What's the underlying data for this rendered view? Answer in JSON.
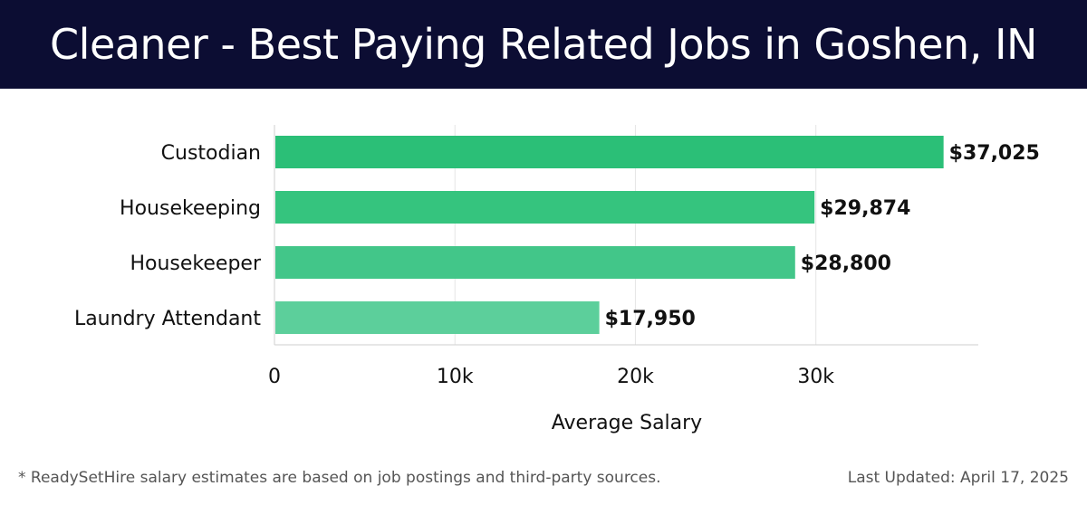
{
  "header": {
    "title": "Cleaner - Best Paying Related Jobs in Goshen, IN"
  },
  "chart_data": {
    "type": "bar",
    "orientation": "horizontal",
    "categories": [
      "Custodian",
      "Housekeeping",
      "Housekeeper",
      "Laundry Attendant"
    ],
    "values": [
      37025,
      29874,
      28800,
      17950
    ],
    "value_labels": [
      "$37,025",
      "$29,874",
      "$28,800",
      "$17,950"
    ],
    "bar_colors": [
      "#2bbf77",
      "#35c47e",
      "#42c689",
      "#5ccf9b"
    ],
    "xlabel": "Average Salary",
    "xlim": [
      0,
      39000
    ],
    "xticks": [
      0,
      10000,
      20000,
      30000
    ],
    "xtick_labels": [
      "0",
      "10k",
      "20k",
      "30k"
    ],
    "grid": true
  },
  "footer": {
    "note": "* ReadySetHire salary estimates are based on job postings and third-party sources.",
    "updated": "Last Updated: April 17, 2025"
  }
}
